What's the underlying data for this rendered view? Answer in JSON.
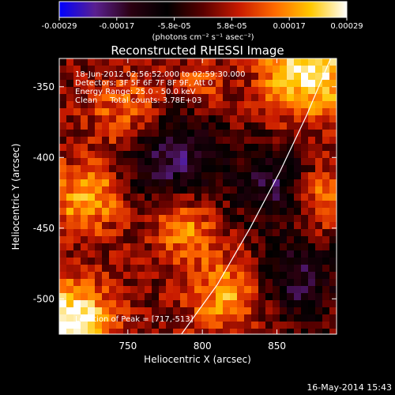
{
  "colorbar": {
    "ticks": [
      "-0.00029",
      "-0.00017",
      "-5.8e-05",
      "5.8e-05",
      "0.00017",
      "0.00029"
    ],
    "units_label": "(photons cm⁻² s⁻¹ asec⁻²)",
    "colors": [
      "#0000ff",
      "#5a2090",
      "#2a0010",
      "#000000",
      "#5a0000",
      "#c81a00",
      "#ff6a00",
      "#ffc800",
      "#ffffff"
    ]
  },
  "chart_data": {
    "type": "heatmap",
    "title": "Reconstructed RHESSI Image",
    "xlabel": "Heliocentric X (arcsec)",
    "ylabel": "Heliocentric Y (arcsec)",
    "xlim": [
      704,
      890
    ],
    "ylim": [
      -525,
      -330
    ],
    "xticks": [
      750,
      800,
      850
    ],
    "yticks": [
      -350,
      -400,
      -450,
      -500
    ],
    "annotations": [
      "18-Jun-2012 02:56:52.000 to 02:59:30.000",
      "Detectors: 3F 5F 6F 7F 8F 9F, Att 0",
      "Energy Range: 25.0 - 50.0 keV",
      "Clean     Total counts: 3.78E+03"
    ],
    "peak_label": "Location of Peak = [717,-513]",
    "peak_location": [
      717,
      -513
    ],
    "limb_curve": [
      [
        786,
        -525
      ],
      [
        810,
        -490
      ],
      [
        832,
        -450
      ],
      [
        852,
        -410
      ],
      [
        870,
        -370
      ],
      [
        886,
        -330
      ]
    ],
    "colorbar_range": [
      -0.00029,
      0.00029
    ],
    "footer_date": "16-May-2014 15:43"
  }
}
